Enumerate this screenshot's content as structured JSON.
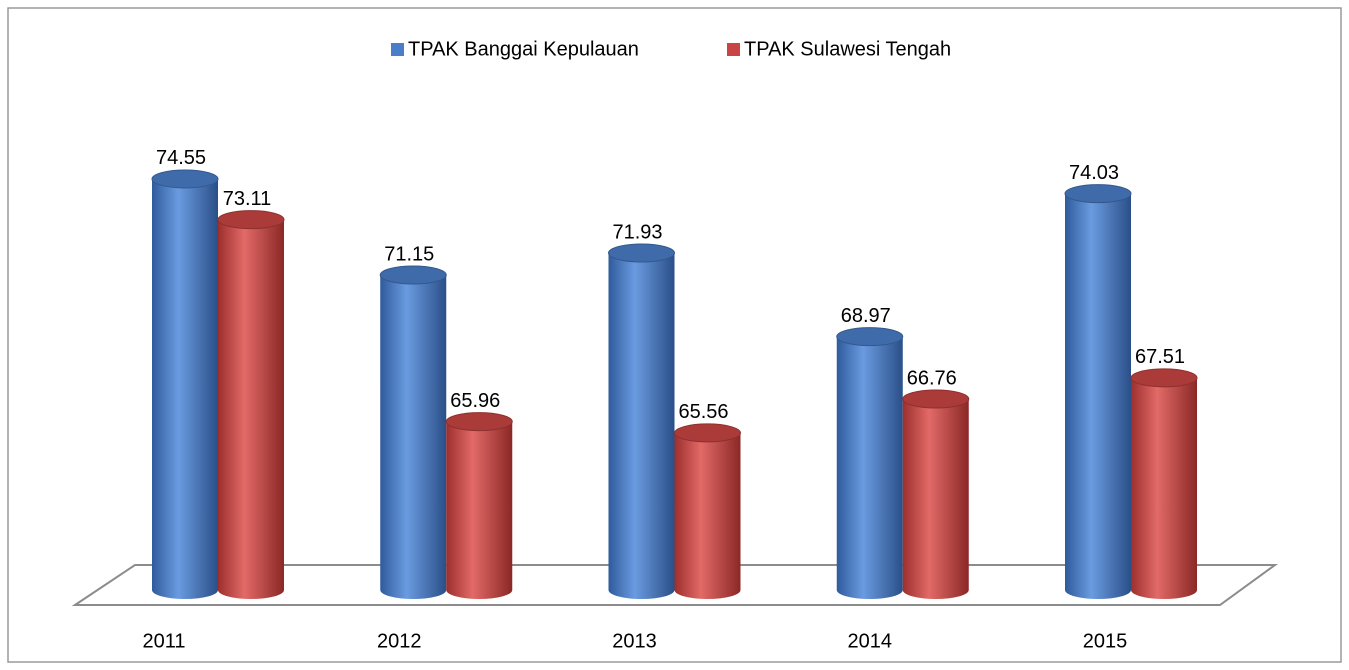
{
  "chart_data": {
    "type": "bar3d",
    "categories": [
      "2011",
      "2012",
      "2013",
      "2014",
      "2015"
    ],
    "series": [
      {
        "name": "TPAK Banggai Kepulauan",
        "color": "#4a7ec8",
        "values": [
          74.55,
          71.15,
          71.93,
          68.97,
          74.03
        ]
      },
      {
        "name": "TPAK Sulawesi Tengah",
        "color": "#c94543",
        "values": [
          73.11,
          65.96,
          65.56,
          66.76,
          67.51
        ]
      }
    ],
    "ylim": [
      60,
      76
    ],
    "legend": "top"
  }
}
